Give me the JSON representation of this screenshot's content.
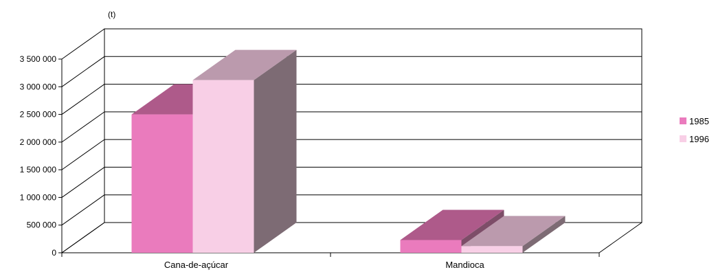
{
  "chart_data": {
    "type": "bar",
    "unit_label": "(t)",
    "categories": [
      "Cana-de-açúcar",
      "Mandioca"
    ],
    "series": [
      {
        "name": "1985",
        "values": [
          2500000,
          230000
        ],
        "colors": {
          "front": "#ea7bbd",
          "top": "#ae5a8a",
          "side": "#7d4d68"
        }
      },
      {
        "name": "1996",
        "values": [
          3120000,
          120000
        ],
        "colors": {
          "front": "#f8cfe6",
          "top": "#bb9aad",
          "side": "#7d6b74"
        }
      }
    ],
    "ylim": [
      0,
      3500000
    ],
    "yticks": [
      0,
      500000,
      1000000,
      1500000,
      2000000,
      2500000,
      3000000,
      3500000
    ],
    "ytick_labels": [
      "0",
      "500 000",
      "1 000 000",
      "1 500 000",
      "2 000 000",
      "2 500 000",
      "3 000 000",
      "3 500 000"
    ],
    "grid": true,
    "legend_position": "right",
    "style": "3d-column"
  }
}
